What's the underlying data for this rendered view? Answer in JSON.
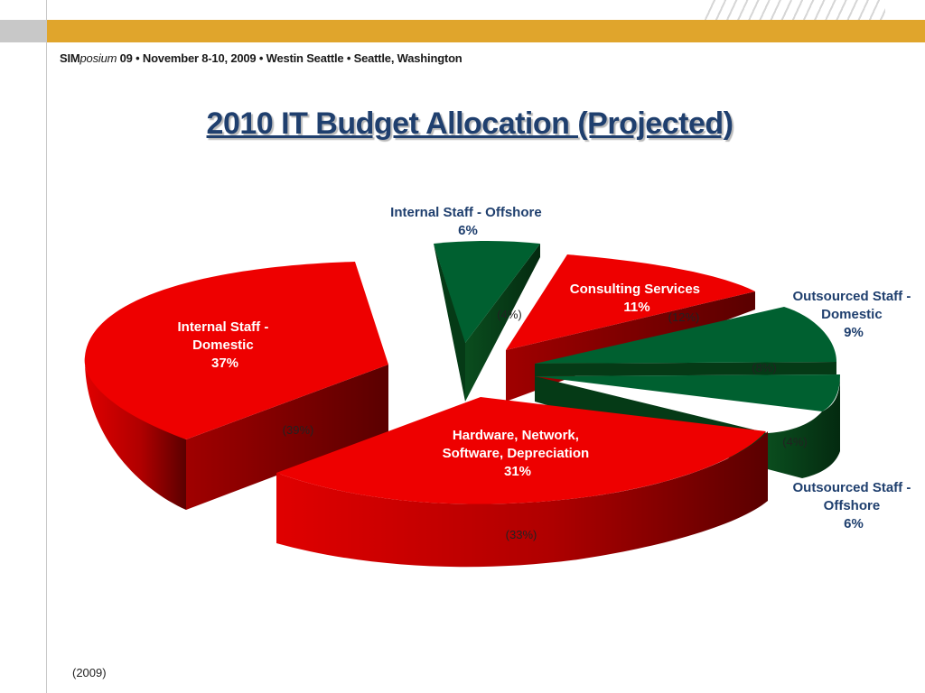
{
  "header": {
    "event_brand_plain": "SIM",
    "event_brand_italic": "posium",
    "event_details": " 09  •  November 8-10, 2009  •  Westin Seattle  •  Seattle, Washington"
  },
  "title": "2010 IT Budget Allocation (Projected)",
  "chart_data": {
    "type": "pie",
    "title": "2010 IT Budget Allocation (Projected)",
    "style": "3d-exploded",
    "series_name": "2010 projected",
    "comparison_label": "(2009)",
    "slices": [
      {
        "name": "Internal Staff - Domestic",
        "value": 37,
        "label": "37%",
        "prior": "(39%)",
        "color": "#e60000"
      },
      {
        "name": "Internal Staff - Offshore",
        "value": 6,
        "label": "6%",
        "prior": "(4%)",
        "color": "#006030"
      },
      {
        "name": "Consulting Services",
        "value": 11,
        "label": "11%",
        "prior": "(12%)",
        "color": "#e60000"
      },
      {
        "name": "Outsourced Staff - Domestic",
        "value": 9,
        "label": "9%",
        "prior": "(8%)",
        "color": "#006030"
      },
      {
        "name": "Outsourced Staff - Offshore",
        "value": 6,
        "label": "6%",
        "prior": "(4%)",
        "color": "#006030"
      },
      {
        "name": "Hardware, Network, Software, Depreciation",
        "value": 31,
        "label": "31%",
        "prior": "(33%)",
        "color": "#e60000"
      }
    ]
  },
  "labels": {
    "internal_domestic": [
      "Internal Staff -",
      "Domestic",
      "37%"
    ],
    "internal_offshore": [
      "Internal Staff - Offshore",
      "6%"
    ],
    "consulting": [
      "Consulting Services",
      "11%"
    ],
    "outsourced_domestic": [
      "Outsourced Staff -",
      "Domestic",
      "9%"
    ],
    "outsourced_offshore": [
      "Outsourced Staff -",
      "Offshore",
      "6%"
    ],
    "hardware": [
      "Hardware, Network,",
      "Software, Depreciation",
      "31%"
    ]
  },
  "footer_note": "(2009)"
}
